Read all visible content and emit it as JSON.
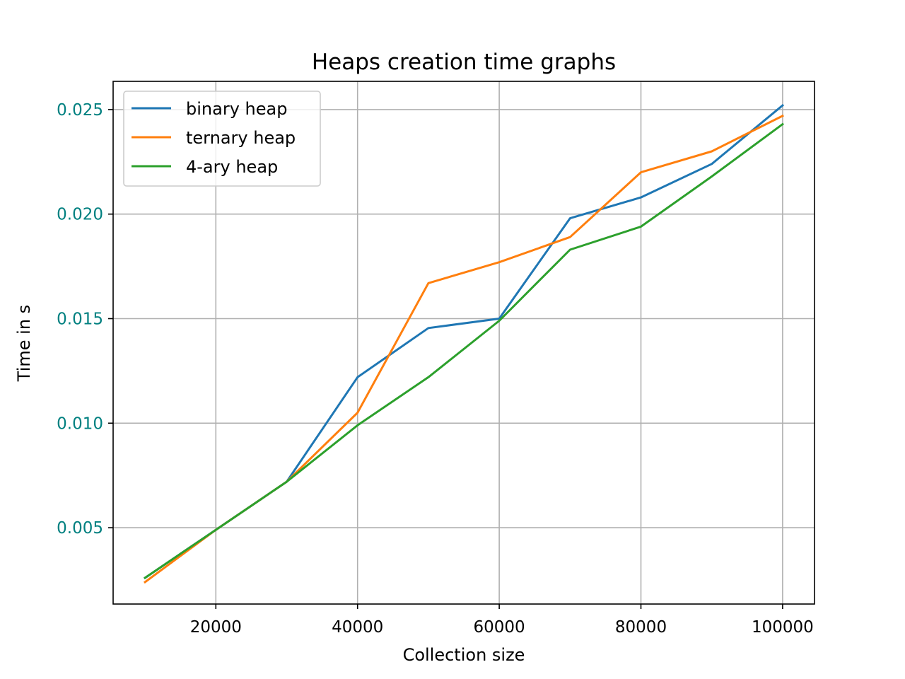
{
  "chart_data": {
    "type": "line",
    "title": "Heaps creation time graphs",
    "xlabel": "Collection size",
    "ylabel": "Time in s",
    "xlim": [
      5500,
      104500
    ],
    "ylim": [
      0.00135,
      0.02635
    ],
    "x_ticks": [
      20000,
      40000,
      60000,
      80000,
      100000
    ],
    "x_tick_labels": [
      "20000",
      "40000",
      "60000",
      "80000",
      "100000"
    ],
    "y_ticks": [
      0.005,
      0.01,
      0.015,
      0.02,
      0.025
    ],
    "y_tick_labels": [
      "0.005",
      "0.010",
      "0.015",
      "0.020",
      "0.025"
    ],
    "y_tick_label_color": "#008080",
    "grid": true,
    "legend_position": "upper-left",
    "x": [
      10000,
      20000,
      30000,
      40000,
      50000,
      60000,
      70000,
      80000,
      90000,
      100000
    ],
    "series": [
      {
        "name": "binary heap",
        "color": "#1f77b4",
        "values": [
          0.0026,
          0.0049,
          0.0072,
          0.0122,
          0.01455,
          0.015,
          0.0198,
          0.0208,
          0.0224,
          0.0252
        ]
      },
      {
        "name": "ternary heap",
        "color": "#ff7f0e",
        "values": [
          0.0024,
          0.0049,
          0.0072,
          0.0105,
          0.0167,
          0.0177,
          0.0189,
          0.022,
          0.023,
          0.0247
        ]
      },
      {
        "name": "4-ary heap",
        "color": "#2ca02c",
        "values": [
          0.0026,
          0.0049,
          0.0072,
          0.0099,
          0.0122,
          0.0149,
          0.0183,
          0.0194,
          0.0218,
          0.0243
        ]
      }
    ]
  }
}
